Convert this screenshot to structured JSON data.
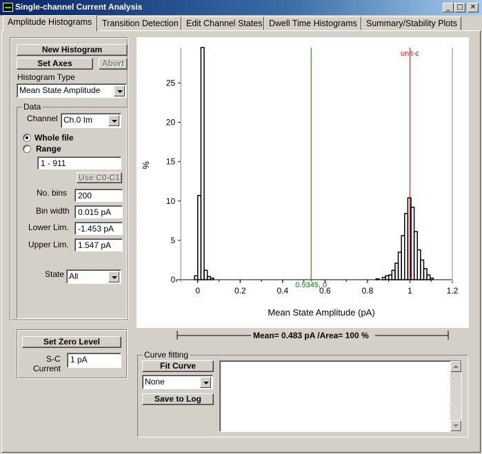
{
  "window": {
    "title": "Single-channel Current Analysis"
  },
  "tabs": [
    {
      "label": "Amplitude Histograms"
    },
    {
      "label": "Transition Detection"
    },
    {
      "label": "Edit Channel States"
    },
    {
      "label": "Dwell Time Histograms"
    },
    {
      "label": "Summary/Stability Plots"
    }
  ],
  "controls": {
    "new_histogram": "New Histogram",
    "set_axes": "Set Axes",
    "abort": "Abort",
    "histogram_type_label": "Histogram Type",
    "histogram_type_value": "Mean State Amplitude"
  },
  "data_group": {
    "legend": "Data",
    "channel_label": "Channel",
    "channel_value": "Ch.0 Im",
    "whole_file": "Whole file",
    "range": "Range",
    "range_value": "1 - 911",
    "use_c0_c1": "Use C0-C1",
    "no_bins_label": "No. bins",
    "no_bins_value": "200",
    "bin_width_label": "Bin width",
    "bin_width_value": "0.015 pA",
    "lower_lim_label": "Lower Lim.",
    "lower_lim_value": "-1.453 pA",
    "upper_lim_label": "Upper Lim.",
    "upper_lim_value": "1.547 pA",
    "state_label": "State",
    "state_value": "All"
  },
  "zero_group": {
    "set_zero_level": "Set Zero Level",
    "sc_current_label_1": "S-C",
    "sc_current_label_2": "Current",
    "sc_current_value": "1 pA"
  },
  "curve_fitting": {
    "legend": "Curve fitting",
    "fit_curve": "Fit Curve",
    "equation_value": "None",
    "save_to_log": "Save to Log"
  },
  "chart_data": {
    "type": "bar",
    "xlabel": "Mean State Amplitude (pA)",
    "ylabel": "%",
    "xlim": [
      -0.1,
      1.2
    ],
    "ylim": [
      0,
      29.5
    ],
    "xticks": [
      "0",
      "0.2",
      "0.4",
      "0.6",
      "0.8",
      "1",
      "1.2"
    ],
    "yticks": [
      "0",
      "5",
      "10",
      "15",
      "20",
      "25"
    ],
    "bin_width": 0.015,
    "bins": [
      [
        -0.015,
        0.5
      ],
      [
        0.0,
        10.7
      ],
      [
        0.015,
        29.5
      ],
      [
        0.03,
        1.2
      ],
      [
        0.045,
        0.4
      ],
      [
        0.06,
        0.2
      ],
      [
        0.84,
        0.1
      ],
      [
        0.87,
        0.3
      ],
      [
        0.885,
        0.5
      ],
      [
        0.9,
        0.6
      ],
      [
        0.915,
        1.2
      ],
      [
        0.93,
        2.1
      ],
      [
        0.945,
        3.5
      ],
      [
        0.96,
        5.6
      ],
      [
        0.975,
        8.4
      ],
      [
        0.99,
        10.4
      ],
      [
        1.005,
        9.2
      ],
      [
        1.02,
        6.1
      ],
      [
        1.035,
        3.8
      ],
      [
        1.05,
        2.5
      ],
      [
        1.065,
        1.4
      ],
      [
        1.08,
        0.6
      ],
      [
        1.095,
        0.2
      ]
    ],
    "cursors": [
      {
        "x": -0.08,
        "color": "#808080",
        "label": ""
      },
      {
        "x": 0.5345,
        "color": "#008000",
        "label": "0.5345, 0"
      },
      {
        "x": 1.0,
        "color": "#ff0000",
        "label": "unit-c"
      },
      {
        "x": 1.2,
        "color": "#808080",
        "label": ""
      }
    ],
    "summary": "Mean= 0.483 pA /Area= 100 %"
  }
}
